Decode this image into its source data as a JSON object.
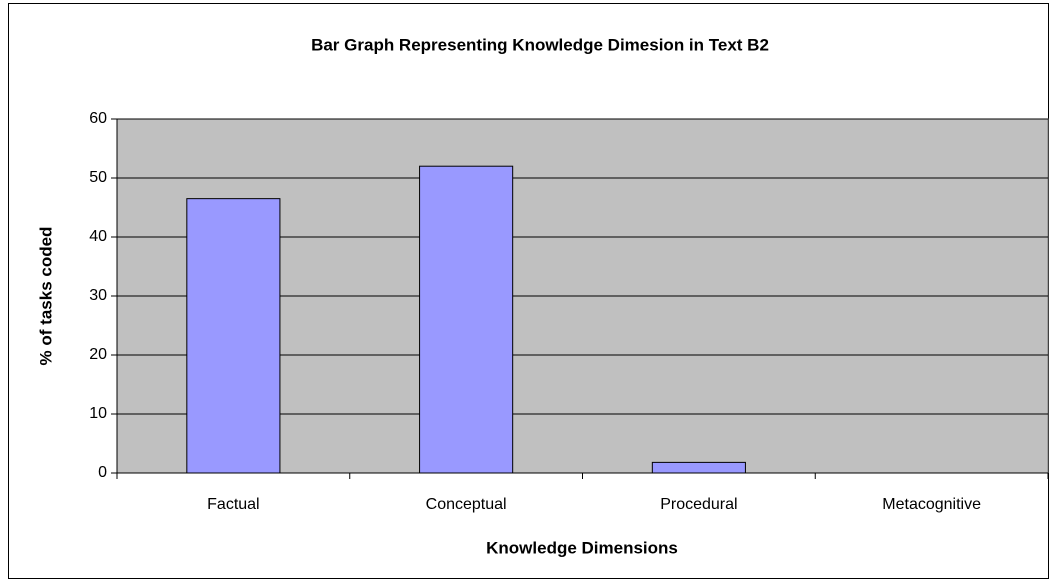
{
  "chart_data": {
    "type": "bar",
    "title": "Bar Graph Representing Knowledge Dimesion in Text B2",
    "x_label": "Knowledge Dimensions",
    "y_label": "% of tasks coded",
    "categories": [
      "Factual",
      "Conceptual",
      "Procedural",
      "Metacognitive"
    ],
    "values": [
      46.5,
      52,
      1.8,
      0
    ],
    "color": "#9999ff",
    "ylim": [
      0,
      60
    ],
    "yticks": [
      0,
      10,
      20,
      30,
      40,
      50,
      60
    ],
    "grid": true
  }
}
